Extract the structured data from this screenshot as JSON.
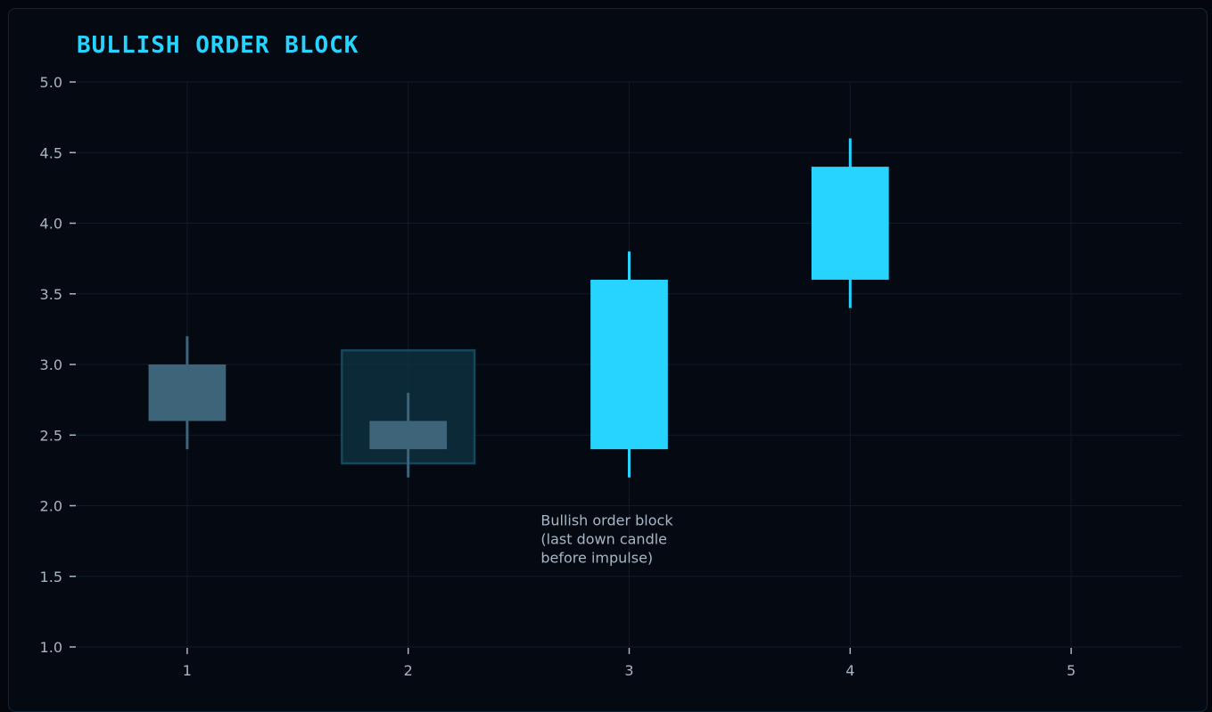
{
  "chart_data": {
    "type": "candlestick",
    "title": "BULLISH ORDER BLOCK",
    "xlabel": "",
    "ylabel": "",
    "xlim": [
      0.5,
      5.5
    ],
    "ylim": [
      1.0,
      5.0
    ],
    "x_ticks": [
      "1",
      "2",
      "3",
      "4",
      "5"
    ],
    "y_ticks": [
      "1.0",
      "1.5",
      "2.0",
      "2.5",
      "3.0",
      "3.5",
      "4.0",
      "4.5",
      "5.0"
    ],
    "grid": true,
    "candles": [
      {
        "x": 1,
        "open": 3.0,
        "high": 3.2,
        "low": 2.4,
        "close": 2.6,
        "direction": "down"
      },
      {
        "x": 2,
        "open": 2.6,
        "high": 2.8,
        "low": 2.2,
        "close": 2.4,
        "direction": "down"
      },
      {
        "x": 3,
        "open": 2.4,
        "high": 3.8,
        "low": 2.2,
        "close": 3.6,
        "direction": "up"
      },
      {
        "x": 4,
        "open": 3.6,
        "high": 4.6,
        "low": 3.4,
        "close": 4.4,
        "direction": "up"
      }
    ],
    "order_block": {
      "x_from": 1.7,
      "x_to": 2.3,
      "y_from": 2.3,
      "y_to": 3.1
    },
    "annotation": {
      "x": 2.6,
      "y": 2.0,
      "lines": [
        "Bullish order block",
        "(last down candle",
        "before impulse)"
      ]
    },
    "colors": {
      "up": "#27d3ff",
      "down": "#3e6479",
      "zone_fill": "#0e3444",
      "zone_stroke": "#15485a",
      "grid": "#0e1c28",
      "axis_text": "#a7b6c4"
    }
  }
}
